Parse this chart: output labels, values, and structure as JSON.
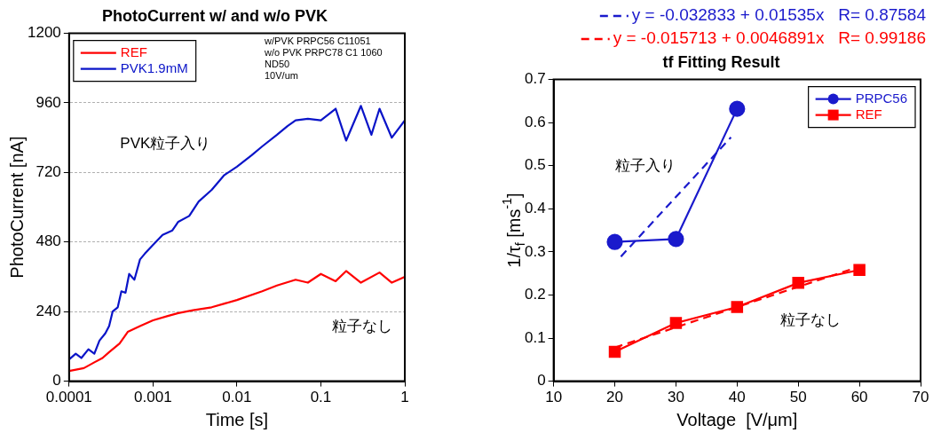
{
  "chart_data": [
    {
      "type": "line",
      "title": "PhotoCurrent w/ and w/o PVK",
      "xlabel": "Time [s]",
      "ylabel": "PhotoCurrent [nA]",
      "log": "x",
      "xlim": [
        0.0001,
        1
      ],
      "xticks": [
        0.0001,
        0.001,
        0.01,
        0.1,
        1
      ],
      "ylim": [
        0,
        1200
      ],
      "yticks": [
        0,
        240,
        480,
        720,
        960,
        1200
      ],
      "grid": "y",
      "legend": "top left",
      "marker": "none",
      "series": [
        {
          "name": "REF",
          "color": "#ff0000",
          "x": [
            0.0001,
            0.00015,
            0.0002,
            0.00025,
            0.0003,
            0.0004,
            0.0005,
            0.0007,
            0.001,
            0.0015,
            0.002,
            0.003,
            0.005,
            0.01,
            0.02,
            0.03,
            0.05,
            0.07,
            0.1,
            0.15,
            0.2,
            0.3,
            0.5,
            0.7,
            1
          ],
          "values": [
            35,
            45,
            65,
            80,
            100,
            130,
            170,
            190,
            210,
            225,
            235,
            245,
            255,
            280,
            310,
            330,
            350,
            340,
            370,
            345,
            380,
            340,
            375,
            340,
            360
          ]
        },
        {
          "name": "PVK1.9mM",
          "color": "#0a14c8",
          "x": [
            0.0001,
            0.00012,
            0.00014,
            0.00017,
            0.0002,
            0.00023,
            0.00027,
            0.0003,
            0.00033,
            0.00038,
            0.00042,
            0.00047,
            0.00052,
            0.0006,
            0.0007,
            0.0008,
            0.001,
            0.0013,
            0.0017,
            0.002,
            0.0027,
            0.0035,
            0.005,
            0.007,
            0.01,
            0.015,
            0.02,
            0.03,
            0.04,
            0.05,
            0.07,
            0.1,
            0.15,
            0.2,
            0.3,
            0.4,
            0.5,
            0.7,
            1
          ],
          "values": [
            75,
            95,
            80,
            110,
            95,
            140,
            165,
            190,
            240,
            255,
            310,
            305,
            370,
            350,
            420,
            440,
            470,
            505,
            520,
            550,
            570,
            620,
            660,
            710,
            740,
            780,
            810,
            850,
            880,
            900,
            905,
            900,
            940,
            830,
            950,
            850,
            940,
            840,
            900
          ]
        }
      ],
      "annotations": [
        "w/PVK PRPC56 C11051",
        "w/o PVK PRPC78 C1 1060",
        "ND50",
        "10V/um",
        "PVK粒子入り",
        "粒子なし"
      ]
    },
    {
      "type": "line",
      "title": "tf Fitting Result",
      "xlabel": "Voltage  [V/μm]",
      "ylabel": "1/τ$_{f}$ [ms$^{-1}$]",
      "xlim": [
        10,
        70
      ],
      "xticks": [
        10,
        20,
        30,
        40,
        50,
        60,
        70
      ],
      "ylim": [
        0,
        0.7
      ],
      "yticks": [
        0,
        0.1,
        0.2,
        0.3,
        0.4,
        0.5,
        0.6,
        0.7
      ],
      "grid": false,
      "legend": "top right",
      "series": [
        {
          "name": "PRPC56",
          "color": "#1a1acc",
          "marker": "circle",
          "x": [
            20,
            30,
            40
          ],
          "values": [
            0.323,
            0.33,
            0.632
          ]
        },
        {
          "name": "REF",
          "color": "#ff0000",
          "marker": "square",
          "x": [
            20,
            30,
            40,
            50,
            60
          ],
          "values": [
            0.068,
            0.135,
            0.172,
            0.228,
            0.258
          ]
        },
        {
          "name": "y = -0.032833 + 0.01535x   R= 0.87584",
          "color": "#1a1acc",
          "marker": "none",
          "line_style": "dashed",
          "x": [
            21,
            39
          ],
          "values": [
            0.289,
            0.566
          ]
        },
        {
          "name": "y = -0.015713 + 0.0046891x   R= 0.99186",
          "color": "#ff0000",
          "marker": "none",
          "line_style": "dashed",
          "x": [
            20,
            60
          ],
          "values": [
            0.078,
            0.266
          ]
        }
      ],
      "annotations": [
        "粒子入り",
        "粒子なし"
      ]
    }
  ]
}
